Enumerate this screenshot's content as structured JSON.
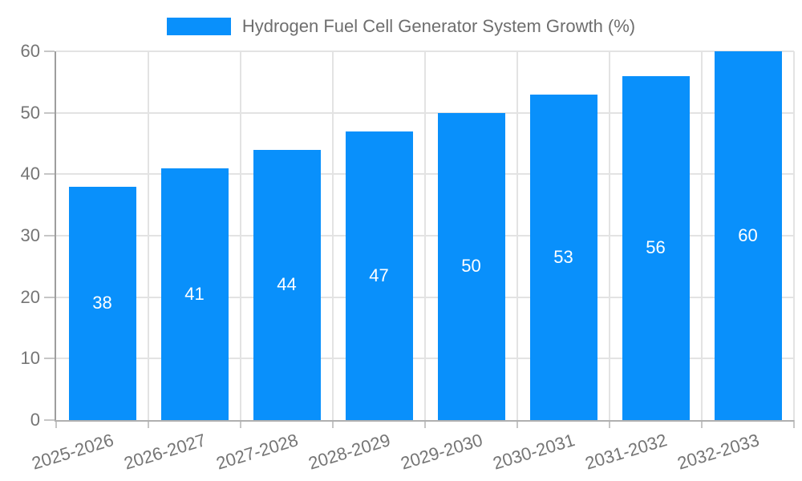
{
  "chart_data": {
    "type": "bar",
    "title": "",
    "legend_label": "Hydrogen Fuel Cell Generator System Growth (%)",
    "legend_position": "top-center",
    "categories": [
      "2025-2026",
      "2026-2027",
      "2027-2028",
      "2028-2029",
      "2029-2030",
      "2030-2031",
      "2031-2032",
      "2032-2033"
    ],
    "values": [
      38,
      41,
      44,
      47,
      50,
      53,
      56,
      60
    ],
    "xlabel": "",
    "ylabel": "",
    "ylim": [
      0,
      60
    ],
    "yticks": [
      0,
      10,
      20,
      30,
      40,
      50,
      60
    ],
    "grid": true,
    "bar_value_labels_shown": true
  },
  "colors": {
    "bar": "#0990fb",
    "bar_label_text": "#ffffff",
    "grid": "#e3e3e3",
    "axis_y": "#9e9e9e",
    "axis_x": "#b0b0b0",
    "tick_mark": "#c6c6c6",
    "tick_label_text": "#757575",
    "legend_text": "#6e6e6e",
    "background": "#ffffff"
  }
}
